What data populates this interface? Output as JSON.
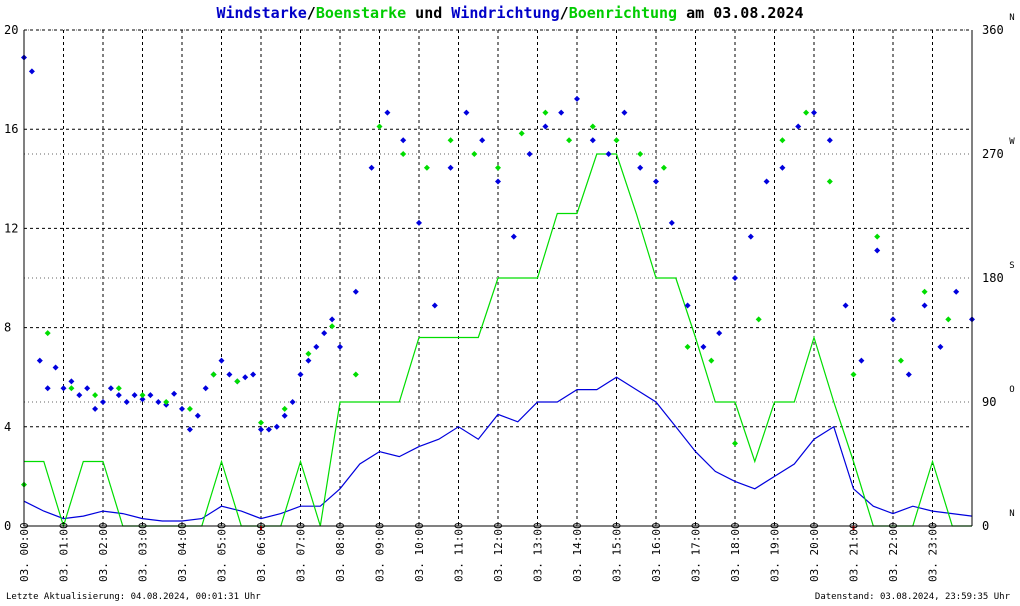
{
  "title_parts": [
    {
      "text": "Windstarke",
      "color": "#0000c8"
    },
    {
      "text": "/",
      "color": "#000000"
    },
    {
      "text": "Boenstarke",
      "color": "#00cc00"
    },
    {
      "text": " und ",
      "color": "#000000"
    },
    {
      "text": "Windrichtung",
      "color": "#0000c8"
    },
    {
      "text": "/",
      "color": "#000000"
    },
    {
      "text": "Boenrichtung",
      "color": "#00cc00"
    },
    {
      "text": " am 03.08.2024",
      "color": "#000000"
    }
  ],
  "footer": {
    "left": "Letzte Aktualisierung: 04.08.2024, 00:01:31 Uhr",
    "right": "Datenstand: 03.08.2024, 23:59:35 Uhr"
  },
  "colors": {
    "wind": "#0000dd",
    "gust": "#00dd00",
    "grid": "#000000",
    "marker": "#cc0000"
  },
  "chart_data": {
    "type": "line",
    "date_prefix": "03.",
    "x_ticks": [
      "00:00",
      "01:00",
      "02:00",
      "03:00",
      "04:00",
      "05:00",
      "06:00",
      "07:00",
      "08:00",
      "09:00",
      "10:00",
      "11:00",
      "12:00",
      "13:00",
      "14:00",
      "15:00",
      "16:00",
      "17:00",
      "18:00",
      "19:00",
      "20:00",
      "21:00",
      "22:00",
      "23:00"
    ],
    "x_range_hours": [
      0,
      24
    ],
    "y_left": {
      "ticks": [
        "0",
        "4",
        "8",
        "12",
        "16",
        "20"
      ],
      "range": [
        0,
        20
      ]
    },
    "y_right": {
      "ticks": [
        "0",
        "90",
        "180",
        "270",
        "360"
      ],
      "range": [
        0,
        360
      ],
      "direction_letters": [
        {
          "value": 0,
          "label": "N"
        },
        {
          "value": 90,
          "label": "O"
        },
        {
          "value": 180,
          "label": "S"
        },
        {
          "value": 270,
          "label": "W"
        },
        {
          "value": 360,
          "label": "N"
        }
      ]
    },
    "grid": true,
    "marker_hours": [
      6,
      21
    ],
    "series": [
      {
        "name": "Windstarke",
        "kind": "speed",
        "color": "#0000dd",
        "points": [
          [
            0.0,
            1.0
          ],
          [
            0.5,
            0.6
          ],
          [
            1.0,
            0.3
          ],
          [
            1.5,
            0.4
          ],
          [
            2.0,
            0.6
          ],
          [
            2.5,
            0.5
          ],
          [
            3.0,
            0.3
          ],
          [
            3.5,
            0.2
          ],
          [
            4.0,
            0.2
          ],
          [
            4.5,
            0.3
          ],
          [
            5.0,
            0.8
          ],
          [
            5.5,
            0.6
          ],
          [
            6.0,
            0.3
          ],
          [
            6.5,
            0.5
          ],
          [
            7.0,
            0.8
          ],
          [
            7.5,
            0.8
          ],
          [
            8.0,
            1.5
          ],
          [
            8.5,
            2.5
          ],
          [
            9.0,
            3.0
          ],
          [
            9.5,
            2.8
          ],
          [
            10.0,
            3.2
          ],
          [
            10.5,
            3.5
          ],
          [
            11.0,
            4.0
          ],
          [
            11.5,
            3.5
          ],
          [
            12.0,
            4.5
          ],
          [
            12.5,
            4.2
          ],
          [
            13.0,
            5.0
          ],
          [
            13.5,
            5.0
          ],
          [
            14.0,
            5.5
          ],
          [
            14.5,
            5.5
          ],
          [
            15.0,
            6.0
          ],
          [
            15.5,
            5.5
          ],
          [
            16.0,
            5.0
          ],
          [
            16.5,
            4.0
          ],
          [
            17.0,
            3.0
          ],
          [
            17.5,
            2.2
          ],
          [
            18.0,
            1.8
          ],
          [
            18.5,
            1.5
          ],
          [
            19.0,
            2.0
          ],
          [
            19.5,
            2.5
          ],
          [
            20.0,
            3.5
          ],
          [
            20.5,
            4.0
          ],
          [
            21.0,
            1.5
          ],
          [
            21.5,
            0.8
          ],
          [
            22.0,
            0.5
          ],
          [
            22.5,
            0.8
          ],
          [
            23.0,
            0.6
          ],
          [
            23.5,
            0.5
          ],
          [
            24.0,
            0.4
          ]
        ]
      },
      {
        "name": "Boenstarke",
        "kind": "speed",
        "color": "#00dd00",
        "points": [
          [
            0.0,
            2.6
          ],
          [
            0.5,
            2.6
          ],
          [
            1.0,
            0.0
          ],
          [
            1.5,
            2.6
          ],
          [
            2.0,
            2.6
          ],
          [
            2.5,
            0.0
          ],
          [
            3.0,
            0.0
          ],
          [
            3.5,
            0.0
          ],
          [
            4.0,
            0.0
          ],
          [
            4.5,
            0.0
          ],
          [
            5.0,
            2.6
          ],
          [
            5.5,
            0.0
          ],
          [
            6.0,
            0.0
          ],
          [
            6.5,
            0.0
          ],
          [
            7.0,
            2.6
          ],
          [
            7.5,
            0.0
          ],
          [
            8.0,
            5.0
          ],
          [
            8.5,
            5.0
          ],
          [
            9.0,
            5.0
          ],
          [
            9.5,
            5.0
          ],
          [
            10.0,
            7.6
          ],
          [
            10.5,
            7.6
          ],
          [
            11.0,
            7.6
          ],
          [
            11.5,
            7.6
          ],
          [
            12.0,
            10.0
          ],
          [
            12.5,
            10.0
          ],
          [
            13.0,
            10.0
          ],
          [
            13.5,
            12.6
          ],
          [
            14.0,
            12.6
          ],
          [
            14.5,
            15.0
          ],
          [
            15.0,
            15.0
          ],
          [
            15.5,
            12.6
          ],
          [
            16.0,
            10.0
          ],
          [
            16.5,
            10.0
          ],
          [
            17.0,
            7.6
          ],
          [
            17.5,
            5.0
          ],
          [
            18.0,
            5.0
          ],
          [
            18.5,
            2.6
          ],
          [
            19.0,
            5.0
          ],
          [
            19.5,
            5.0
          ],
          [
            20.0,
            7.6
          ],
          [
            20.5,
            5.0
          ],
          [
            21.0,
            2.6
          ],
          [
            21.5,
            0.0
          ],
          [
            22.0,
            0.0
          ],
          [
            22.5,
            0.0
          ],
          [
            23.0,
            2.6
          ],
          [
            23.5,
            0.0
          ],
          [
            24.0,
            0.0
          ]
        ]
      },
      {
        "name": "Windrichtung",
        "kind": "direction",
        "color": "#0000dd",
        "points": [
          [
            0.0,
            340
          ],
          [
            0.2,
            330
          ],
          [
            0.4,
            120
          ],
          [
            0.6,
            100
          ],
          [
            0.8,
            115
          ],
          [
            1.0,
            100
          ],
          [
            1.2,
            105
          ],
          [
            1.4,
            95
          ],
          [
            1.6,
            100
          ],
          [
            1.8,
            85
          ],
          [
            2.0,
            90
          ],
          [
            2.2,
            100
          ],
          [
            2.4,
            95
          ],
          [
            2.6,
            90
          ],
          [
            2.8,
            95
          ],
          [
            3.0,
            92
          ],
          [
            3.2,
            95
          ],
          [
            3.4,
            90
          ],
          [
            3.6,
            88
          ],
          [
            3.8,
            96
          ],
          [
            4.0,
            85
          ],
          [
            4.2,
            70
          ],
          [
            4.4,
            80
          ],
          [
            4.6,
            100
          ],
          [
            4.8,
            110
          ],
          [
            5.0,
            120
          ],
          [
            5.2,
            110
          ],
          [
            5.4,
            105
          ],
          [
            5.6,
            108
          ],
          [
            5.8,
            110
          ],
          [
            6.0,
            70
          ],
          [
            6.2,
            70
          ],
          [
            6.4,
            72
          ],
          [
            6.6,
            80
          ],
          [
            6.8,
            90
          ],
          [
            7.0,
            110
          ],
          [
            7.2,
            120
          ],
          [
            7.4,
            130
          ],
          [
            7.6,
            140
          ],
          [
            7.8,
            150
          ],
          [
            8.0,
            130
          ],
          [
            8.4,
            170
          ],
          [
            8.8,
            260
          ],
          [
            9.2,
            300
          ],
          [
            9.6,
            280
          ],
          [
            10.0,
            220
          ],
          [
            10.4,
            160
          ],
          [
            10.8,
            260
          ],
          [
            11.2,
            300
          ],
          [
            11.6,
            280
          ],
          [
            12.0,
            250
          ],
          [
            12.4,
            210
          ],
          [
            12.8,
            270
          ],
          [
            13.2,
            290
          ],
          [
            13.6,
            300
          ],
          [
            14.0,
            310
          ],
          [
            14.4,
            280
          ],
          [
            14.8,
            270
          ],
          [
            15.2,
            300
          ],
          [
            15.6,
            260
          ],
          [
            16.0,
            250
          ],
          [
            16.4,
            220
          ],
          [
            16.8,
            160
          ],
          [
            17.2,
            130
          ],
          [
            17.6,
            140
          ],
          [
            18.0,
            180
          ],
          [
            18.4,
            210
          ],
          [
            18.8,
            250
          ],
          [
            19.2,
            260
          ],
          [
            19.6,
            290
          ],
          [
            20.0,
            300
          ],
          [
            20.4,
            280
          ],
          [
            20.8,
            160
          ],
          [
            21.2,
            120
          ],
          [
            21.6,
            200
          ],
          [
            22.0,
            150
          ],
          [
            22.4,
            110
          ],
          [
            22.8,
            160
          ],
          [
            23.2,
            130
          ],
          [
            23.6,
            170
          ],
          [
            24.0,
            150
          ]
        ]
      },
      {
        "name": "Boenrichtung",
        "kind": "direction",
        "color": "#00dd00",
        "points": [
          [
            0.0,
            30
          ],
          [
            0.6,
            140
          ],
          [
            1.2,
            100
          ],
          [
            1.8,
            95
          ],
          [
            2.4,
            100
          ],
          [
            3.0,
            95
          ],
          [
            3.6,
            90
          ],
          [
            4.2,
            85
          ],
          [
            4.8,
            110
          ],
          [
            5.4,
            105
          ],
          [
            6.0,
            75
          ],
          [
            6.6,
            85
          ],
          [
            7.2,
            125
          ],
          [
            7.8,
            145
          ],
          [
            8.4,
            110
          ],
          [
            9.0,
            290
          ],
          [
            9.6,
            270
          ],
          [
            10.2,
            260
          ],
          [
            10.8,
            280
          ],
          [
            11.4,
            270
          ],
          [
            12.0,
            260
          ],
          [
            12.6,
            285
          ],
          [
            13.2,
            300
          ],
          [
            13.8,
            280
          ],
          [
            14.4,
            290
          ],
          [
            15.0,
            280
          ],
          [
            15.6,
            270
          ],
          [
            16.2,
            260
          ],
          [
            16.8,
            130
          ],
          [
            17.4,
            120
          ],
          [
            18.0,
            60
          ],
          [
            18.6,
            150
          ],
          [
            19.2,
            280
          ],
          [
            19.8,
            300
          ],
          [
            20.4,
            250
          ],
          [
            21.0,
            110
          ],
          [
            21.6,
            210
          ],
          [
            22.2,
            120
          ],
          [
            22.8,
            170
          ],
          [
            23.4,
            150
          ]
        ]
      }
    ]
  }
}
